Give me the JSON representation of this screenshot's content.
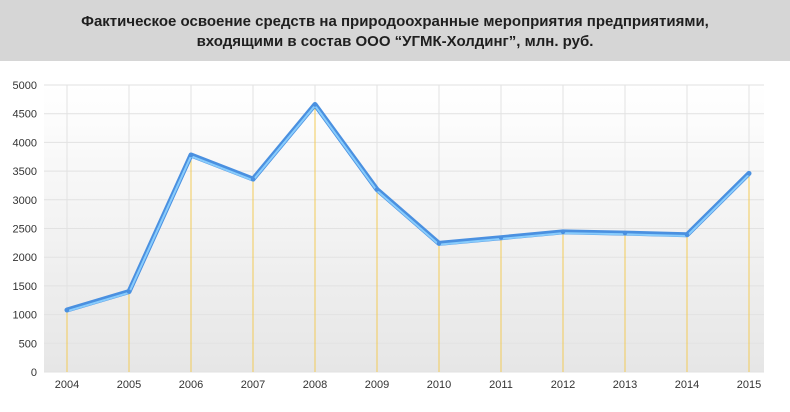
{
  "title": {
    "line1": "Фактическое освоение средств на природоохранные мероприятия предприятиями,",
    "line2": "входящими в состав ООО “УГМК-Холдинг”, млн. руб."
  },
  "colors": {
    "header_bg": "#d6d6d6",
    "line": "#4a90e0",
    "line_highlight": "#8fd3ff",
    "drop_lines": "#f5c842",
    "grid": "#e2e2e2",
    "plot_bg_top": "#ffffff",
    "plot_bg_bottom": "#e6e6e6"
  },
  "chart_data": {
    "type": "line",
    "title": "Фактическое освоение средств на природоохранные мероприятия предприятиями, входящими в состав ООО “УГМК-Холдинг”, млн. руб.",
    "xlabel": "",
    "ylabel": "",
    "categories": [
      "2004",
      "2005",
      "2006",
      "2007",
      "2008",
      "2009",
      "2010",
      "2011",
      "2012",
      "2013",
      "2014",
      "2015"
    ],
    "series": [
      {
        "values": [
          1080,
          1400,
          3780,
          3360,
          4660,
          3180,
          2240,
          2340,
          2440,
          2420,
          2390,
          3460
        ]
      }
    ],
    "ylim": [
      0,
      5000
    ],
    "yticks": [
      0,
      500,
      1000,
      1500,
      2000,
      2500,
      3000,
      3500,
      4000,
      4500,
      5000
    ],
    "grid": true,
    "legend": "none"
  }
}
